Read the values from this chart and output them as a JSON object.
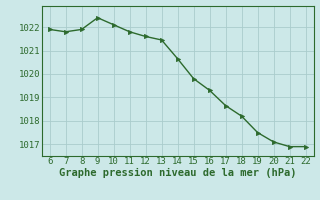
{
  "x": [
    6,
    7,
    8,
    9,
    10,
    11,
    12,
    13,
    14,
    15,
    16,
    17,
    18,
    19,
    20,
    21,
    22
  ],
  "y": [
    1021.9,
    1021.8,
    1021.9,
    1022.4,
    1022.1,
    1021.8,
    1021.6,
    1021.45,
    1020.65,
    1019.8,
    1019.3,
    1018.65,
    1018.2,
    1017.5,
    1017.1,
    1016.9,
    1016.9
  ],
  "line_color": "#2d6a2d",
  "marker_color": "#2d6a2d",
  "bg_color": "#cce8e8",
  "grid_color": "#aacccc",
  "axis_color": "#2d6a2d",
  "tick_label_color": "#2d6a2d",
  "xlabel": "Graphe pression niveau de la mer (hPa)",
  "ylim_min": 1016.5,
  "ylim_max": 1022.9,
  "yticks": [
    1017,
    1018,
    1019,
    1020,
    1021,
    1022
  ],
  "xticks": [
    6,
    7,
    8,
    9,
    10,
    11,
    12,
    13,
    14,
    15,
    16,
    17,
    18,
    19,
    20,
    21,
    22
  ],
  "font_size": 6.5,
  "xlabel_fontsize": 7.5,
  "line_width": 1.0,
  "marker_size": 3.0,
  "xlim_min": 5.5,
  "xlim_max": 22.5
}
